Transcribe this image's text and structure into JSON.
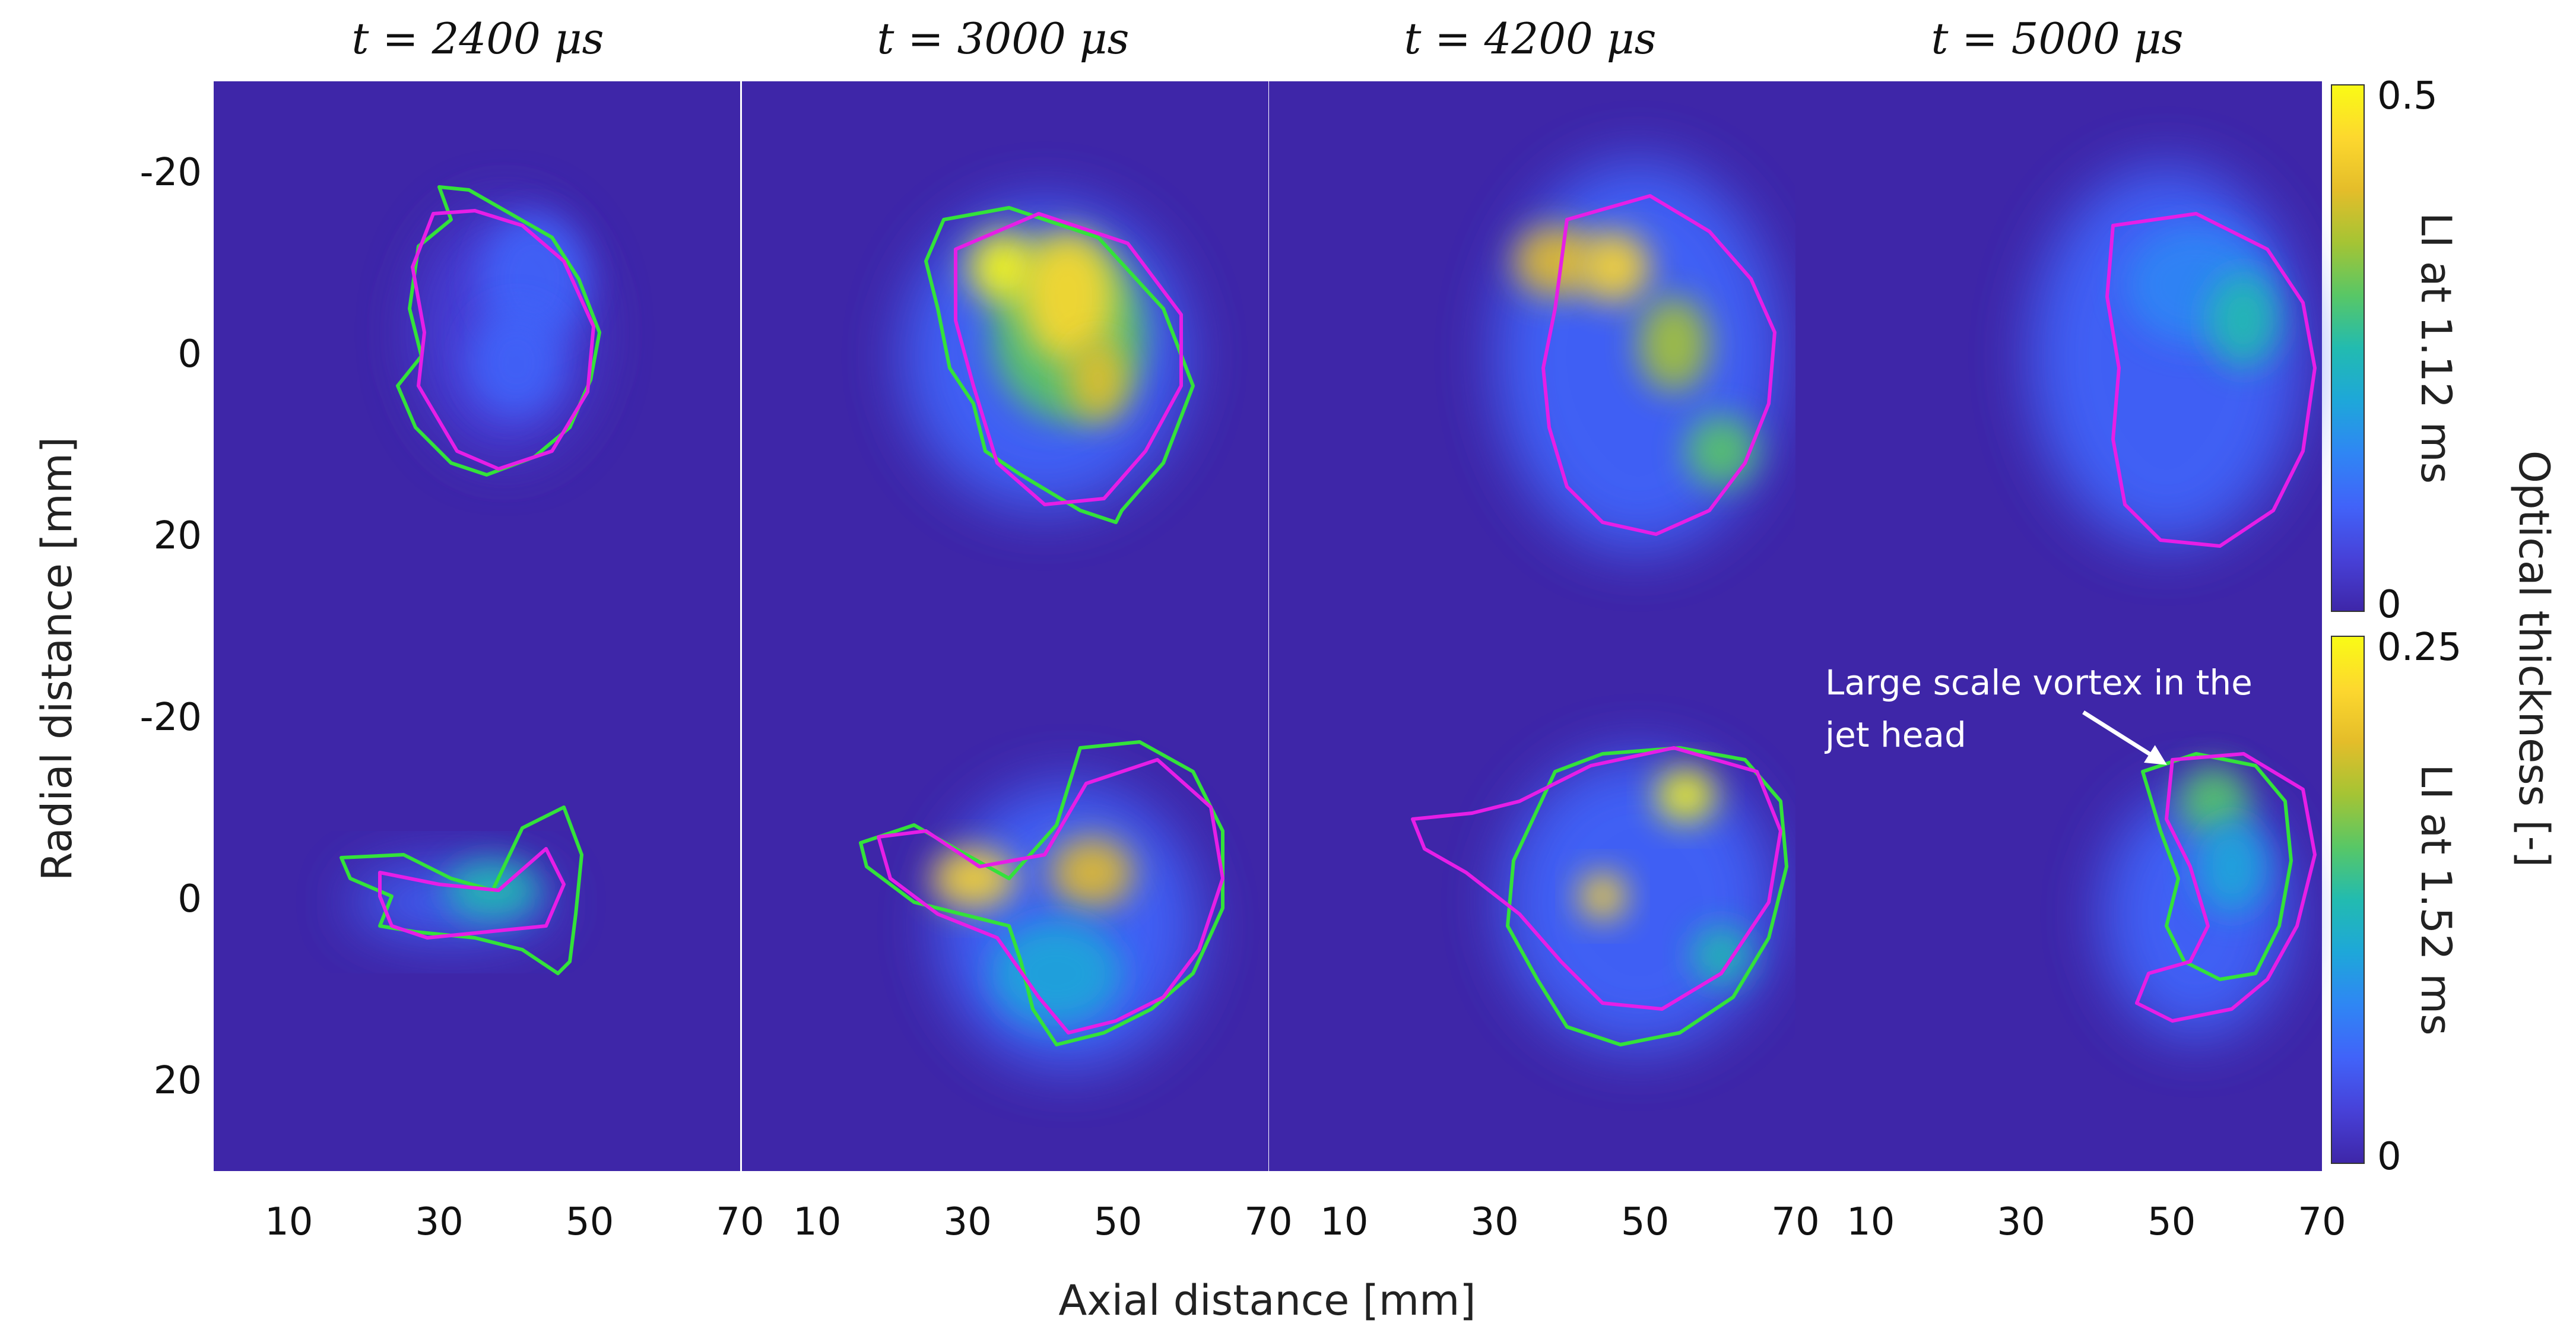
{
  "chart_data": {
    "type": "heatmap",
    "description_axis": {
      "xlabel": "Axial distance [mm]",
      "ylabel": "Radial distance [mm]",
      "xlim": [
        0,
        70
      ],
      "ylim": [
        -30,
        30
      ],
      "x_ticks": [
        "10",
        "30",
        "50",
        "70"
      ],
      "y_ticks": [
        "-20",
        "0",
        "20"
      ]
    },
    "panel_titles": [
      "t = 2400 μs",
      "t = 3000 μs",
      "t = 4200 μs",
      "t = 5000 μs"
    ],
    "colorbar_title": "Optical thickness [-]",
    "rows": [
      {
        "label": "LI at 1.12 ms",
        "cmin": "0",
        "cmax": "0.5",
        "vmax": 0.5
      },
      {
        "label": "LI at 1.52 ms",
        "cmin": "0",
        "cmax": "0.25",
        "vmax": 0.25
      }
    ],
    "colormap": [
      "#3e26a8",
      "#4741d8",
      "#4163f9",
      "#2f86f4",
      "#1ea7d9",
      "#22bbb0",
      "#58c766",
      "#a5c434",
      "#e4bd2a",
      "#fdd82e",
      "#f9fb15"
    ],
    "contour_colors": {
      "green": "#33e23a",
      "magenta": "#e61ee6"
    },
    "annotation": "Large scale vortex in the jet head"
  }
}
